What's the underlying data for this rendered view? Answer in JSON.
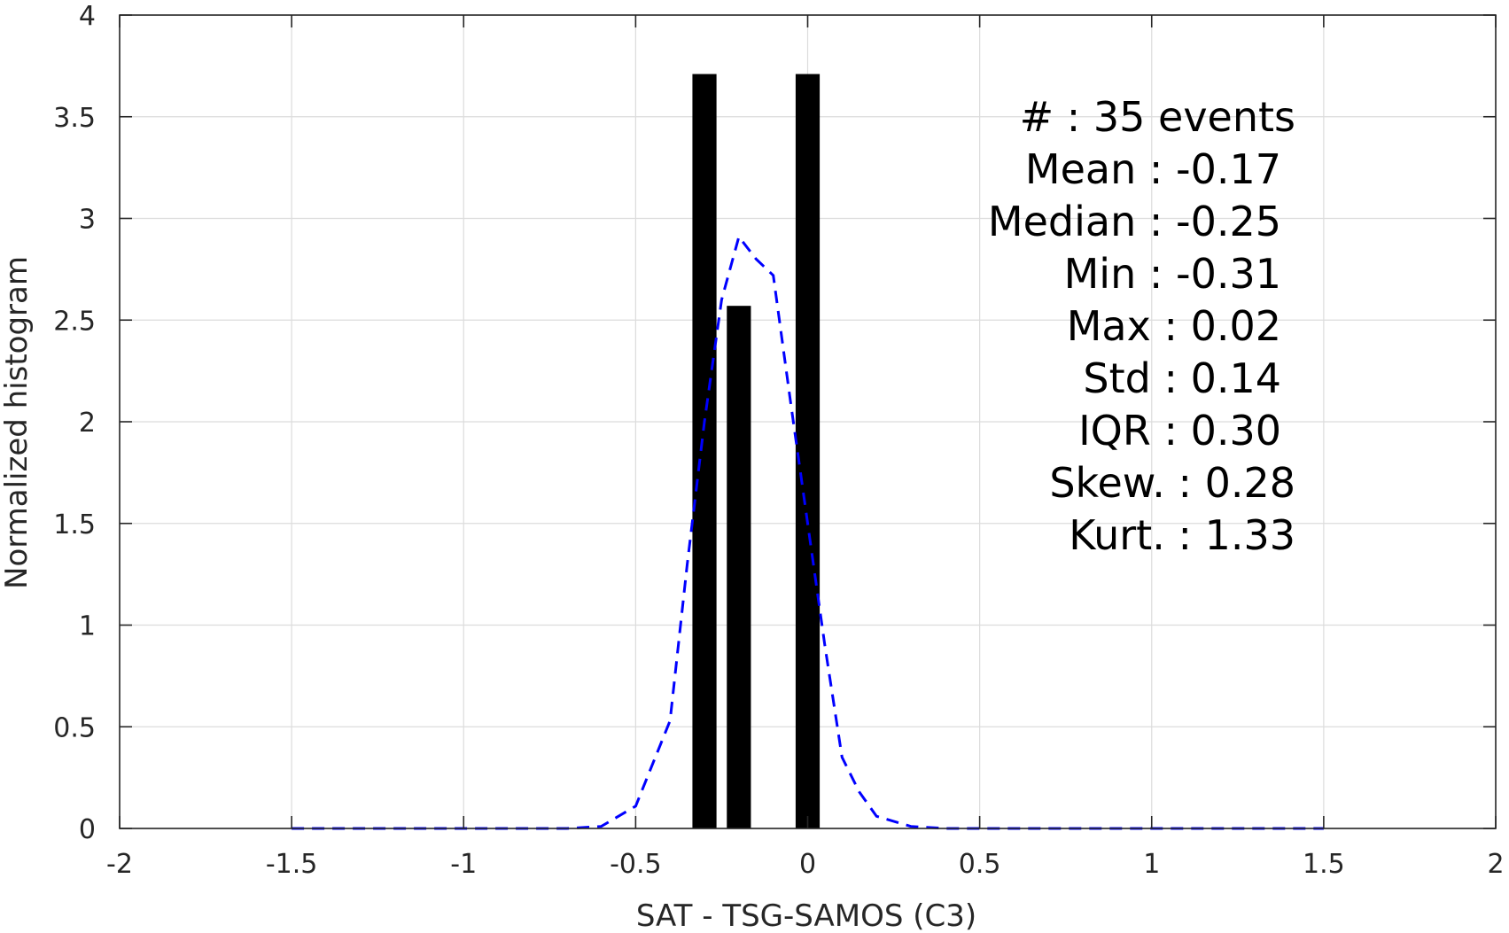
{
  "chart_data": {
    "type": "bar",
    "xlabel": "SAT - TSG-SAMOS (C3)",
    "ylabel": "Normalized histogram",
    "xlim": [
      -2,
      2
    ],
    "ylim": [
      0,
      4
    ],
    "xticks": [
      "-2",
      "-1.5",
      "-1",
      "-0.5",
      "0",
      "0.5",
      "1",
      "1.5",
      "2"
    ],
    "yticks": [
      "0",
      "0.5",
      "1",
      "1.5",
      "2",
      "2.5",
      "3",
      "3.5",
      "4"
    ],
    "grid": true,
    "bars": [
      {
        "x": -0.3,
        "value": 3.71
      },
      {
        "x": -0.2,
        "value": 2.57
      },
      {
        "x": 0.0,
        "value": 3.71
      }
    ],
    "bar_width": 0.07,
    "bar_color": "#000000",
    "fit_curve": {
      "style": "dashed",
      "color": "#0000ff",
      "x": [
        -1.5,
        -1.4,
        -1.3,
        -1.2,
        -1.1,
        -1.0,
        -0.9,
        -0.8,
        -0.7,
        -0.6,
        -0.5,
        -0.4,
        -0.35,
        -0.3,
        -0.25,
        -0.2,
        -0.15,
        -0.1,
        -0.05,
        0.0,
        0.05,
        0.1,
        0.15,
        0.2,
        0.3,
        0.4,
        0.5,
        0.6,
        0.7,
        0.8,
        0.9,
        1.0,
        1.1,
        1.2,
        1.3,
        1.4,
        1.5
      ],
      "y": [
        0,
        0,
        0,
        0,
        0,
        0,
        0,
        0,
        0,
        0.01,
        0.11,
        0.53,
        1.3,
        2.0,
        2.6,
        2.91,
        2.8,
        2.72,
        2.1,
        1.5,
        0.9,
        0.35,
        0.18,
        0.06,
        0.01,
        0,
        0,
        0,
        0,
        0,
        0,
        0,
        0,
        0,
        0,
        0,
        0
      ]
    },
    "stats_lines": [
      "#  : 35 events",
      "Mean : -0.17",
      "Median : -0.25",
      "Min : -0.31",
      "Max : 0.02",
      "Std : 0.14",
      "IQR : 0.30",
      "Skew. : 0.28",
      "Kurt. : 1.33"
    ],
    "stats_placement": "top-right"
  }
}
